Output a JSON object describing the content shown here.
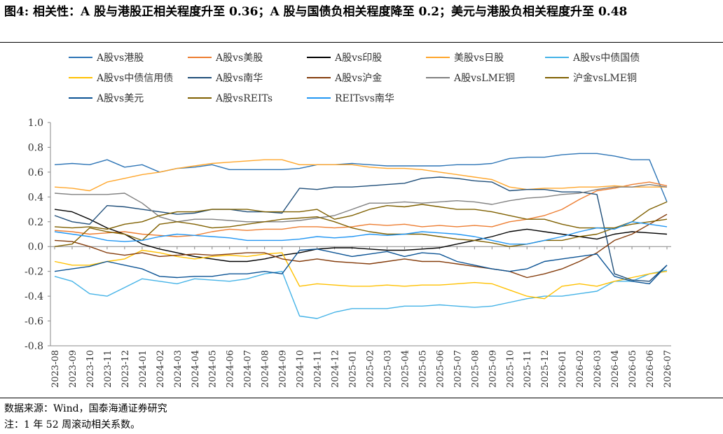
{
  "title": "图4: 相关性：A 股与港股正相关程度升至 0.36；A 股与国债负相关程度降至 0.2；美元与港股负相关程度升至 0.48",
  "source": "数据来源：Wind，国泰海通证券研究",
  "note": "注：1 年 52 周滚动相关系数。",
  "chart_data": {
    "type": "line",
    "ylim": [
      -0.8,
      1.0
    ],
    "yticks": [
      "1.0",
      "0.8",
      "0.6",
      "0.4",
      "0.2",
      "0.0",
      "-0.2",
      "-0.4",
      "-0.6",
      "-0.8"
    ],
    "ytick_values": [
      1.0,
      0.8,
      0.6,
      0.4,
      0.2,
      0.0,
      -0.2,
      -0.4,
      -0.6,
      -0.8
    ],
    "xticks": [
      "2023-08",
      "2023-09",
      "2023-10",
      "2023-11",
      "2023-12",
      "2024-01",
      "2024-02",
      "2024-03",
      "2024-04",
      "2024-05",
      "2024-06",
      "2024-07",
      "2024-08",
      "2024-09",
      "2024-10",
      "2024-11",
      "2024-12",
      "2025-01",
      "2025-02",
      "2025-03",
      "2025-04",
      "2025-05",
      "2025-06",
      "2025-07",
      "2025-08",
      "2025-09",
      "2025-10",
      "2025-11",
      "2025-12",
      "2026-01",
      "2026-02",
      "2026-03",
      "2026-04",
      "2026-05",
      "2026-06",
      "2026-07"
    ],
    "legend_position": "top",
    "series": [
      {
        "name": "A股vs港股",
        "color": "#2e75b6",
        "values": [
          0.66,
          0.67,
          0.66,
          0.7,
          0.64,
          0.66,
          0.6,
          0.63,
          0.64,
          0.66,
          0.62,
          0.62,
          0.62,
          0.62,
          0.63,
          0.66,
          0.66,
          0.67,
          0.66,
          0.65,
          0.65,
          0.65,
          0.65,
          0.66,
          0.66,
          0.67,
          0.71,
          0.72,
          0.72,
          0.74,
          0.75,
          0.75,
          0.73,
          0.7,
          0.7,
          0.36
        ]
      },
      {
        "name": "A股vs美股",
        "color": "#ed7d31",
        "values": [
          0.13,
          0.12,
          0.1,
          0.11,
          0.12,
          0.1,
          0.09,
          0.08,
          0.09,
          0.12,
          0.14,
          0.13,
          0.14,
          0.14,
          0.16,
          0.16,
          0.15,
          0.16,
          0.18,
          0.17,
          0.18,
          0.16,
          0.17,
          0.16,
          0.17,
          0.16,
          0.2,
          0.22,
          0.25,
          0.3,
          0.38,
          0.45,
          0.47,
          0.5,
          0.52,
          0.49
        ]
      },
      {
        "name": "A股vs印股",
        "color": "#000000",
        "values": [
          0.3,
          0.28,
          0.22,
          0.15,
          0.1,
          0.02,
          -0.02,
          -0.05,
          -0.08,
          -0.1,
          -0.12,
          -0.12,
          -0.1,
          -0.07,
          -0.05,
          -0.02,
          -0.01,
          -0.01,
          -0.02,
          -0.03,
          -0.03,
          -0.02,
          -0.01,
          0.02,
          0.05,
          0.08,
          0.12,
          0.14,
          0.12,
          0.1,
          0.08,
          0.06,
          0.1,
          0.12,
          0.11,
          0.1
        ]
      },
      {
        "name": "美股vs日股",
        "color": "#ffa62b",
        "values": [
          0.48,
          0.47,
          0.45,
          0.52,
          0.55,
          0.58,
          0.6,
          0.63,
          0.65,
          0.67,
          0.68,
          0.69,
          0.7,
          0.7,
          0.66,
          0.66,
          0.66,
          0.66,
          0.64,
          0.63,
          0.63,
          0.62,
          0.6,
          0.58,
          0.56,
          0.54,
          0.48,
          0.46,
          0.47,
          0.47,
          0.48,
          0.48,
          0.49,
          0.48,
          0.48,
          0.48
        ]
      },
      {
        "name": "A股vs中债国债",
        "color": "#45b3e7",
        "values": [
          -0.24,
          -0.28,
          -0.38,
          -0.4,
          -0.33,
          -0.26,
          -0.28,
          -0.3,
          -0.26,
          -0.27,
          -0.28,
          -0.26,
          -0.22,
          -0.2,
          -0.56,
          -0.58,
          -0.53,
          -0.5,
          -0.5,
          -0.5,
          -0.48,
          -0.48,
          -0.47,
          -0.48,
          -0.49,
          -0.48,
          -0.45,
          -0.42,
          -0.4,
          -0.4,
          -0.38,
          -0.36,
          -0.28,
          -0.28,
          -0.22,
          -0.19
        ]
      },
      {
        "name": "A股vs中债信用债",
        "color": "#ffc000",
        "values": [
          -0.12,
          -0.15,
          -0.15,
          -0.12,
          -0.1,
          -0.03,
          -0.05,
          -0.08,
          -0.1,
          -0.08,
          -0.07,
          -0.08,
          -0.06,
          -0.05,
          -0.32,
          -0.3,
          -0.31,
          -0.32,
          -0.32,
          -0.31,
          -0.32,
          -0.31,
          -0.31,
          -0.3,
          -0.29,
          -0.3,
          -0.35,
          -0.4,
          -0.42,
          -0.32,
          -0.3,
          -0.32,
          -0.28,
          -0.25,
          -0.22,
          -0.2
        ]
      },
      {
        "name": "A股vs南华",
        "color": "#1f4e79",
        "values": [
          0.25,
          0.2,
          0.18,
          0.33,
          0.32,
          0.3,
          0.28,
          0.26,
          0.27,
          0.3,
          0.3,
          0.28,
          0.28,
          0.27,
          0.47,
          0.46,
          0.48,
          0.48,
          0.49,
          0.5,
          0.51,
          0.55,
          0.56,
          0.55,
          0.53,
          0.52,
          0.45,
          0.46,
          0.46,
          0.44,
          0.44,
          0.42,
          -0.22,
          -0.27,
          -0.28,
          -0.15
        ]
      },
      {
        "name": "A股vs沪金",
        "color": "#843c0c",
        "values": [
          0.05,
          0.04,
          0.0,
          -0.05,
          -0.07,
          -0.05,
          -0.08,
          -0.07,
          -0.06,
          -0.07,
          -0.06,
          -0.05,
          -0.05,
          -0.1,
          -0.12,
          -0.1,
          -0.12,
          -0.13,
          -0.14,
          -0.12,
          -0.1,
          -0.12,
          -0.12,
          -0.14,
          -0.16,
          -0.18,
          -0.2,
          -0.25,
          -0.22,
          -0.18,
          -0.12,
          -0.05,
          0.05,
          0.1,
          0.18,
          0.26
        ]
      },
      {
        "name": "A股vsLME铜",
        "color": "#808080",
        "values": [
          0.43,
          0.42,
          0.42,
          0.42,
          0.43,
          0.35,
          0.24,
          0.2,
          0.22,
          0.22,
          0.21,
          0.2,
          0.2,
          0.2,
          0.21,
          0.23,
          0.25,
          0.3,
          0.35,
          0.35,
          0.36,
          0.35,
          0.36,
          0.37,
          0.36,
          0.34,
          0.37,
          0.39,
          0.4,
          0.42,
          0.43,
          0.46,
          0.48,
          0.48,
          0.5,
          0.48
        ]
      },
      {
        "name": "沪金vsLME铜",
        "color": "#7f6000",
        "values": [
          0.16,
          0.15,
          0.16,
          0.14,
          0.18,
          0.2,
          0.25,
          0.28,
          0.28,
          0.3,
          0.3,
          0.3,
          0.28,
          0.28,
          0.28,
          0.3,
          0.22,
          0.25,
          0.3,
          0.33,
          0.32,
          0.34,
          0.32,
          0.3,
          0.3,
          0.28,
          0.25,
          0.22,
          0.22,
          0.18,
          0.15,
          0.15,
          0.15,
          0.2,
          0.3,
          0.36
        ]
      },
      {
        "name": "A股vs美元",
        "color": "#0b5394",
        "values": [
          -0.2,
          -0.18,
          -0.16,
          -0.12,
          -0.15,
          -0.18,
          -0.24,
          -0.25,
          -0.24,
          -0.24,
          -0.22,
          -0.22,
          -0.2,
          -0.22,
          -0.03,
          -0.02,
          -0.05,
          -0.08,
          -0.06,
          -0.04,
          -0.08,
          -0.05,
          -0.06,
          -0.12,
          -0.15,
          -0.18,
          -0.2,
          -0.18,
          -0.12,
          -0.1,
          -0.08,
          -0.06,
          -0.24,
          -0.28,
          -0.3,
          -0.15
        ]
      },
      {
        "name": "A股vsREITs",
        "color": "#806000",
        "values": [
          0.0,
          0.02,
          0.15,
          0.12,
          0.1,
          0.05,
          0.18,
          0.2,
          0.18,
          0.15,
          0.16,
          0.18,
          0.2,
          0.22,
          0.23,
          0.24,
          0.2,
          0.15,
          0.12,
          0.1,
          0.1,
          0.1,
          0.08,
          0.06,
          0.05,
          0.03,
          0.0,
          0.02,
          0.05,
          0.05,
          0.08,
          0.1,
          0.15,
          0.18,
          0.2,
          0.22
        ]
      },
      {
        "name": "REITsvs南华",
        "color": "#2196f3",
        "values": [
          0.12,
          0.1,
          0.08,
          0.05,
          0.04,
          0.05,
          0.08,
          0.1,
          0.09,
          0.08,
          0.07,
          0.05,
          0.05,
          0.05,
          0.06,
          0.08,
          0.07,
          0.08,
          0.1,
          0.09,
          0.1,
          0.12,
          0.11,
          0.1,
          0.08,
          0.05,
          0.02,
          0.02,
          0.05,
          0.08,
          0.12,
          0.15,
          0.14,
          0.2,
          0.18,
          0.16
        ]
      }
    ]
  }
}
